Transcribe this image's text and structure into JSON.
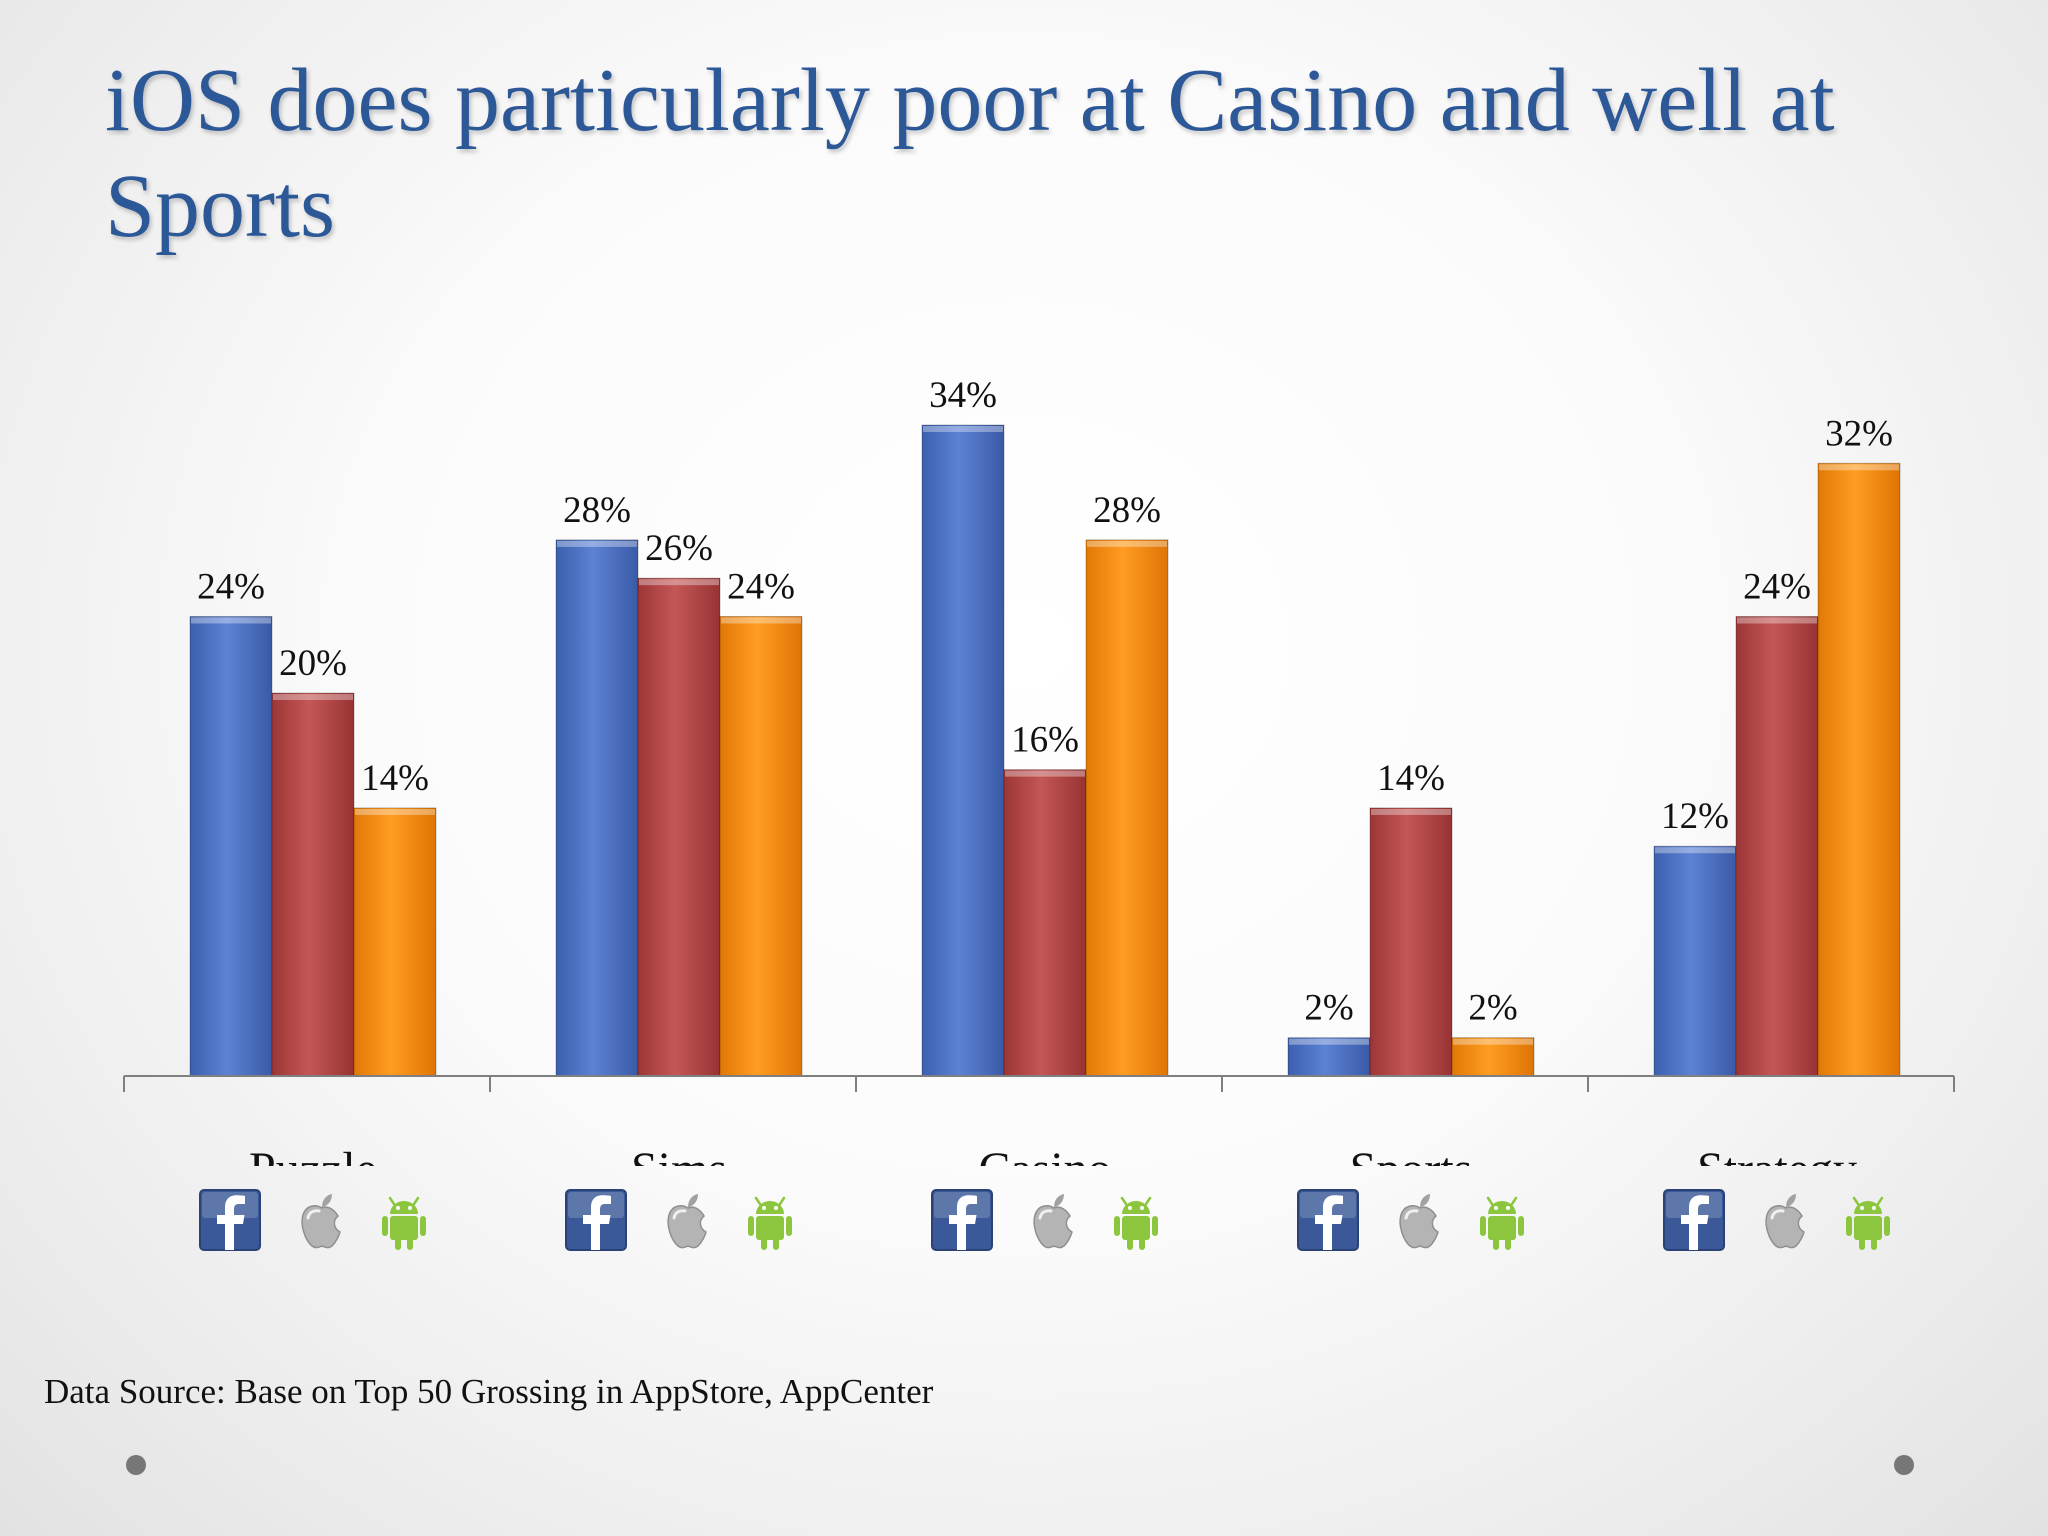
{
  "slide": {
    "title": "iOS does particularly poor at Casino and well at Sports",
    "source": "Data Source: Base on Top 50 Grossing in AppStore, AppCenter"
  },
  "colors": {
    "series": [
      "#4a70c4",
      "#b54444",
      "#f58a0a"
    ],
    "title": "#2c5898"
  },
  "platform_icons": [
    "facebook-icon",
    "apple-icon",
    "android-icon"
  ],
  "chart_data": {
    "type": "bar",
    "categories": [
      "Puzzle",
      "Sims",
      "Casino",
      "Sports",
      "Strategy"
    ],
    "series": [
      {
        "values": [
          24,
          28,
          34,
          2,
          12
        ]
      },
      {
        "values": [
          20,
          26,
          16,
          14,
          24
        ]
      },
      {
        "values": [
          14,
          24,
          28,
          2,
          32
        ]
      }
    ],
    "value_labels": [
      [
        "24%",
        "28%",
        "34%",
        "2%",
        "12%"
      ],
      [
        "20%",
        "26%",
        "16%",
        "14%",
        "24%"
      ],
      [
        "14%",
        "24%",
        "28%",
        "2%",
        "32%"
      ]
    ],
    "ylim": [
      0,
      34
    ],
    "grid": false,
    "legend": "icons below each category"
  }
}
